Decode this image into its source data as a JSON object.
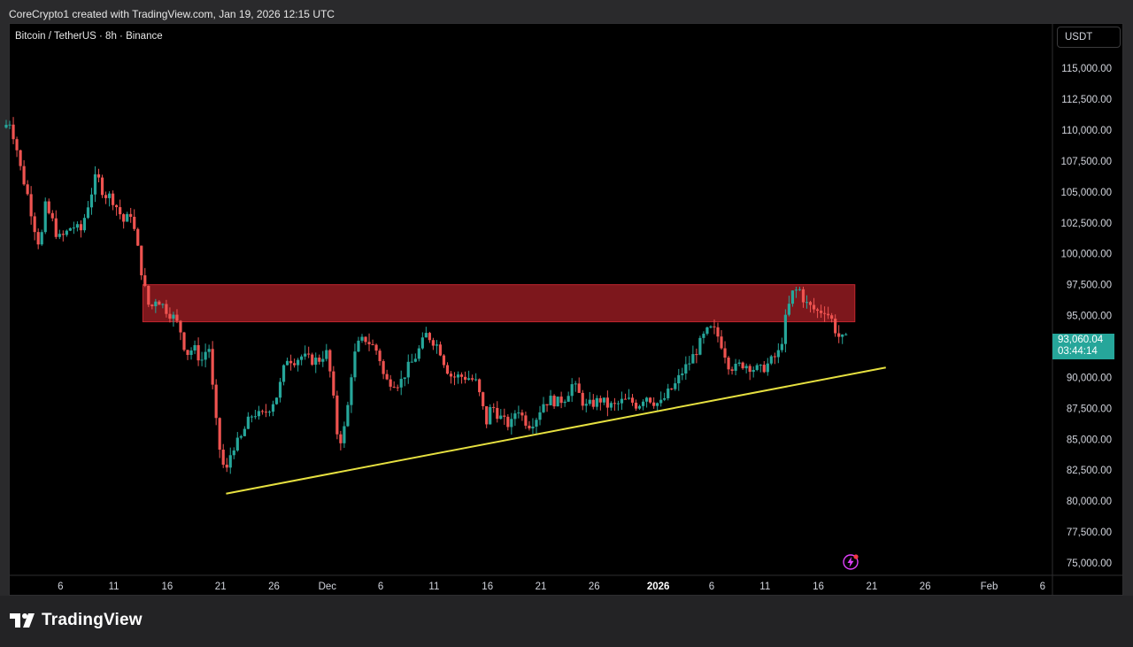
{
  "attribution": "CoreCrypto1 created with TradingView.com, Jan 19, 2026 12:15 UTC",
  "symbol_label": "Bitcoin / TetherUS · 8h · Binance",
  "currency_button": "USDT",
  "last_price": "93,060.04",
  "countdown": "03:44:14",
  "brand": "TradingView",
  "colors": {
    "up": "#26a69a",
    "down": "#ef5350",
    "zone": "#8b1a1f",
    "trendline": "#e6e040",
    "bolt": "#e040fb"
  },
  "icons": {
    "notification": "bolt-icon",
    "logo": "tradingview-logo-icon"
  },
  "chart_data": {
    "type": "candlestick",
    "interval": "8h",
    "ylim": [
      74000,
      117600
    ],
    "y_ticks": [
      75000,
      77500,
      80000,
      82500,
      85000,
      87500,
      90000,
      92500,
      95000,
      97500,
      100000,
      102500,
      105000,
      107500,
      110000,
      112500,
      115000
    ],
    "y_tick_labels": [
      "75,000.00",
      "77,500.00",
      "80,000.00",
      "82,500.00",
      "85,000.00",
      "87,500.00",
      "90,000.00",
      "92,500.00",
      "95,000.00",
      "97,500.00",
      "100,000.00",
      "102,500.00",
      "105,000.00",
      "107,500.00",
      "110,000.00",
      "112,500.00",
      "115,000.00"
    ],
    "x_ticks": [
      "6",
      "11",
      "16",
      "21",
      "26",
      "Dec",
      "6",
      "11",
      "16",
      "21",
      "26",
      "2026",
      "6",
      "11",
      "16",
      "21",
      "26",
      "Feb",
      "6"
    ],
    "x_tick_day_index": [
      5,
      10,
      15,
      20,
      25,
      30,
      35,
      40,
      45,
      50,
      55,
      61,
      66,
      71,
      76,
      81,
      86,
      92,
      97
    ],
    "bold_ticks": [
      "2026"
    ],
    "path_points": [
      [
        0,
        110200
      ],
      [
        0.7,
        110700
      ],
      [
        1.3,
        108600
      ],
      [
        1.7,
        106800
      ],
      [
        2.3,
        104900
      ],
      [
        3,
        102100
      ],
      [
        3.5,
        100500
      ],
      [
        4,
        103800
      ],
      [
        4.6,
        102800
      ],
      [
        5.2,
        101200
      ],
      [
        5.8,
        101500
      ],
      [
        6.5,
        102300
      ],
      [
        7.3,
        101800
      ],
      [
        8.1,
        104300
      ],
      [
        8.8,
        106400
      ],
      [
        9.5,
        104800
      ],
      [
        10.2,
        104600
      ],
      [
        10.8,
        103600
      ],
      [
        11.4,
        102500
      ],
      [
        12,
        103300
      ],
      [
        12.6,
        100700
      ],
      [
        13.2,
        97600
      ],
      [
        13.8,
        95400
      ],
      [
        14.4,
        96500
      ],
      [
        15.2,
        95600
      ],
      [
        15.9,
        95000
      ],
      [
        16.6,
        94000
      ],
      [
        17.2,
        91900
      ],
      [
        17.9,
        92400
      ],
      [
        18.6,
        91300
      ],
      [
        19.3,
        92700
      ],
      [
        19.9,
        86900
      ],
      [
        20.4,
        83800
      ],
      [
        20.9,
        82100
      ],
      [
        21.5,
        84400
      ],
      [
        22.2,
        84800
      ],
      [
        22.8,
        86100
      ],
      [
        23.5,
        87200
      ],
      [
        24.2,
        86800
      ],
      [
        25,
        87600
      ],
      [
        25.8,
        88700
      ],
      [
        26.6,
        91600
      ],
      [
        27.3,
        91400
      ],
      [
        28,
        91700
      ],
      [
        28.8,
        91400
      ],
      [
        29.6,
        91400
      ],
      [
        30.3,
        92100
      ],
      [
        30.8,
        89800
      ],
      [
        31.3,
        85600
      ],
      [
        31.8,
        84800
      ],
      [
        32.3,
        87400
      ],
      [
        32.8,
        91400
      ],
      [
        33.4,
        92800
      ],
      [
        34,
        93100
      ],
      [
        34.6,
        92600
      ],
      [
        35.2,
        92000
      ],
      [
        35.8,
        89700
      ],
      [
        36.5,
        89700
      ],
      [
        37.2,
        89500
      ],
      [
        37.9,
        90700
      ],
      [
        38.5,
        91400
      ],
      [
        39.1,
        92400
      ],
      [
        39.7,
        93500
      ],
      [
        40.3,
        93000
      ],
      [
        40.9,
        92400
      ],
      [
        41.5,
        90900
      ],
      [
        42.1,
        90000
      ],
      [
        42.8,
        90100
      ],
      [
        43.6,
        90000
      ],
      [
        44.3,
        89700
      ],
      [
        44.8,
        88200
      ],
      [
        45.3,
        86300
      ],
      [
        45.8,
        87800
      ],
      [
        46.4,
        87000
      ],
      [
        47,
        86400
      ],
      [
        47.6,
        86100
      ],
      [
        48.2,
        87700
      ],
      [
        48.8,
        86600
      ],
      [
        49.4,
        86200
      ],
      [
        50,
        86800
      ],
      [
        50.6,
        87900
      ],
      [
        51.3,
        88200
      ],
      [
        52,
        88000
      ],
      [
        52.7,
        88400
      ],
      [
        53.4,
        89500
      ],
      [
        54,
        88600
      ],
      [
        54.6,
        87600
      ],
      [
        55.3,
        87900
      ],
      [
        56,
        88200
      ],
      [
        56.7,
        87700
      ],
      [
        57.4,
        87700
      ],
      [
        58.1,
        88100
      ],
      [
        58.8,
        88100
      ],
      [
        59.5,
        87700
      ],
      [
        60.2,
        88600
      ],
      [
        60.9,
        88100
      ],
      [
        61.6,
        87800
      ],
      [
        62.3,
        88700
      ],
      [
        63,
        89400
      ],
      [
        63.7,
        90500
      ],
      [
        64.4,
        91300
      ],
      [
        65,
        92200
      ],
      [
        65.6,
        93200
      ],
      [
        66.2,
        93900
      ],
      [
        66.8,
        93700
      ],
      [
        67.4,
        92600
      ],
      [
        68,
        91100
      ],
      [
        68.6,
        90700
      ],
      [
        69.2,
        91100
      ],
      [
        69.8,
        91000
      ],
      [
        70.4,
        90700
      ],
      [
        71,
        90600
      ],
      [
        71.6,
        91000
      ],
      [
        72.2,
        91500
      ],
      [
        72.8,
        92100
      ],
      [
        73.4,
        95000
      ],
      [
        74,
        96800
      ],
      [
        74.6,
        97200
      ],
      [
        75.2,
        96000
      ],
      [
        75.8,
        95600
      ],
      [
        76.4,
        95300
      ],
      [
        77,
        95500
      ],
      [
        77.6,
        94800
      ],
      [
        78.2,
        93400
      ],
      [
        78.7,
        93060
      ]
    ],
    "resistance_zone": {
      "from": 94500,
      "to": 97500,
      "x_start": 12.8,
      "x_end": 79.5
    },
    "support_trendline": {
      "points": [
        [
          20.6,
          80600
        ],
        [
          82.4,
          90800
        ]
      ]
    }
  }
}
